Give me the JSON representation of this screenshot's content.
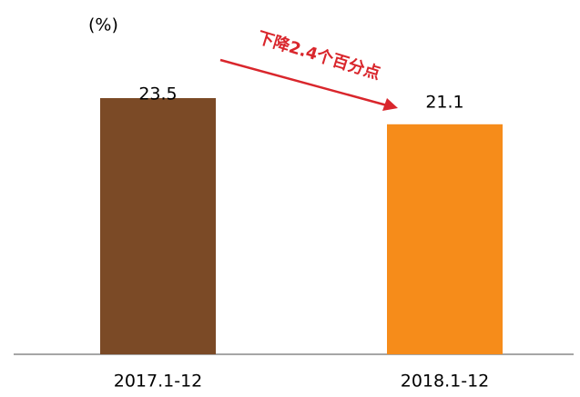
{
  "chart_data": {
    "type": "bar",
    "y_unit_label": "(%)",
    "categories": [
      "2017.1-12",
      "2018.1-12"
    ],
    "values": [
      23.5,
      21.1
    ],
    "colors": [
      "#7b4a26",
      "#f68c1a"
    ],
    "ylim": [
      0,
      26
    ],
    "annotation": "下降2.4个百分点",
    "annotation_color": "#d9262c"
  }
}
